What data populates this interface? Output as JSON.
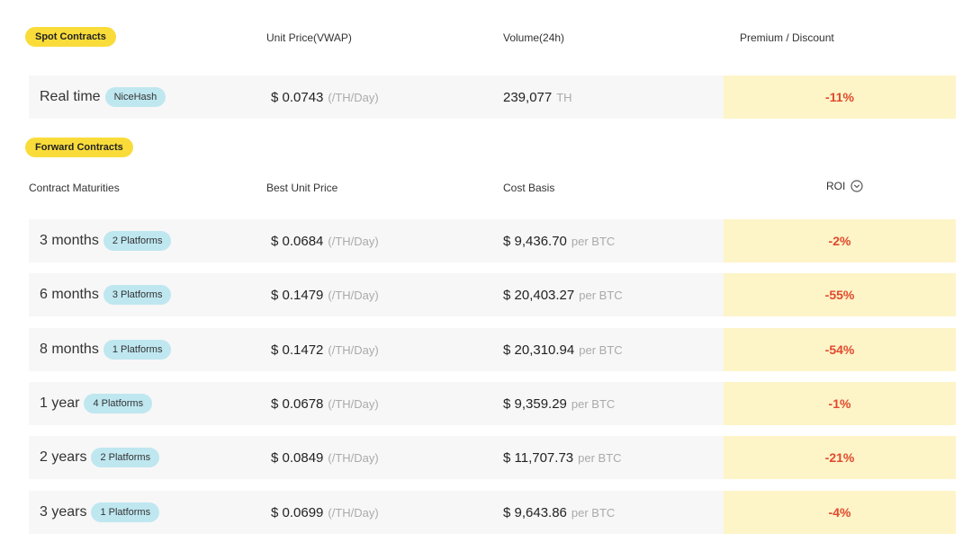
{
  "spot": {
    "tag": "Spot Contracts",
    "headers": {
      "price": "Unit Price(VWAP)",
      "volume": "Volume(24h)",
      "premium": "Premium / Discount"
    },
    "row": {
      "label": "Real time",
      "badge": "NiceHash",
      "price": "$ 0.0743",
      "price_unit": "(/TH/Day)",
      "volume": "239,077",
      "volume_unit": "TH",
      "premium": "-11%"
    }
  },
  "forward": {
    "tag": "Forward Contracts",
    "headers": {
      "maturity": "Contract Maturities",
      "price": "Best Unit Price",
      "cost": "Cost Basis",
      "roi": "ROI"
    },
    "roi_sort_icon": "chevron-down-circle-icon",
    "rows": [
      {
        "label": "3 months",
        "badge": "2 Platforms",
        "price": "$ 0.0684",
        "price_unit": "(/TH/Day)",
        "cost": "$ 9,436.70",
        "cost_unit": "per BTC",
        "roi": "-2%"
      },
      {
        "label": "6 months",
        "badge": "3 Platforms",
        "price": "$ 0.1479",
        "price_unit": "(/TH/Day)",
        "cost": "$ 20,403.27",
        "cost_unit": "per BTC",
        "roi": "-55%"
      },
      {
        "label": "8 months",
        "badge": "1 Platforms",
        "price": "$ 0.1472",
        "price_unit": "(/TH/Day)",
        "cost": "$ 20,310.94",
        "cost_unit": "per BTC",
        "roi": "-54%"
      },
      {
        "label": "1 year",
        "badge": "4 Platforms",
        "price": "$ 0.0678",
        "price_unit": "(/TH/Day)",
        "cost": "$ 9,359.29",
        "cost_unit": "per BTC",
        "roi": "-1%"
      },
      {
        "label": "2 years",
        "badge": "2 Platforms",
        "price": "$ 0.0849",
        "price_unit": "(/TH/Day)",
        "cost": "$ 11,707.73",
        "cost_unit": "per BTC",
        "roi": "-21%"
      },
      {
        "label": "3 years",
        "badge": "1 Platforms",
        "price": "$ 0.0699",
        "price_unit": "(/TH/Day)",
        "cost": "$ 9,643.86",
        "cost_unit": "per BTC",
        "roi": "-4%"
      }
    ]
  },
  "colors": {
    "tag_yellow": "#f9dc3a",
    "badge_blue": "#bfe7f0",
    "roi_bg": "#fdf4c8",
    "negative_red": "#e24a2c"
  }
}
